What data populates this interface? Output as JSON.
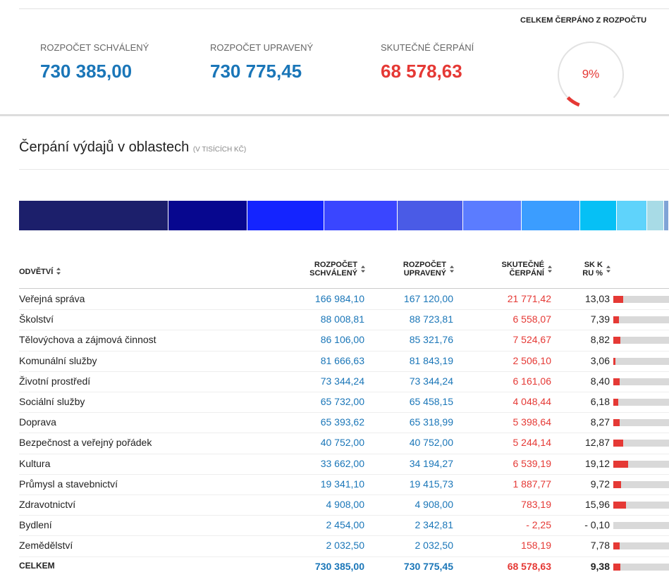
{
  "summary": {
    "items": [
      {
        "label": "ROZPOČET SCHVÁLENÝ",
        "value": "730 385,00"
      },
      {
        "label": "ROZPOČET UPRAVENÝ",
        "value": "730 775,45"
      },
      {
        "label": "SKUTEČNÉ ČERPÁNÍ",
        "value": "68 578,63"
      }
    ],
    "gauge_title": "CELKEM ČERPÁNO Z ROZPOČTU",
    "gauge": {
      "value": 9,
      "label": "9%"
    }
  },
  "section": {
    "title": "Čerpání výdajů v oblastech",
    "unit": "(V TISÍCÍCH KČ)"
  },
  "table": {
    "headers": [
      "ODVĚTVÍ",
      "ROZPOČET SCHVÁLENÝ",
      "ROZPOČET UPRAVENÝ",
      "SKUTEČNÉ ČERPÁNÍ",
      "SK K RU %"
    ],
    "rows": [
      [
        "Veřejná správa",
        "166 984,10",
        "167 120,00",
        "21 771,42",
        "13,03"
      ],
      [
        "Školství",
        "88 008,81",
        "88 723,81",
        "6 558,07",
        "7,39"
      ],
      [
        "Tělovýchova a zájmová činnost",
        "86 106,00",
        "85 321,76",
        "7 524,67",
        "8,82"
      ],
      [
        "Komunální služby",
        "81 666,63",
        "81 843,19",
        "2 506,10",
        "3,06"
      ],
      [
        "Životní prostředí",
        "73 344,24",
        "73 344,24",
        "6 161,06",
        "8,40"
      ],
      [
        "Sociální služby",
        "65 732,00",
        "65 458,15",
        "4 048,44",
        "6,18"
      ],
      [
        "Doprava",
        "65 393,62",
        "65 318,99",
        "5 398,64",
        "8,27"
      ],
      [
        "Bezpečnost a veřejný pořádek",
        "40 752,00",
        "40 752,00",
        "5 244,14",
        "12,87"
      ],
      [
        "Kultura",
        "33 662,00",
        "34 194,27",
        "6 539,19",
        "19,12"
      ],
      [
        "Průmysl a stavebnictví",
        "19 341,10",
        "19 415,73",
        "1 887,77",
        "9,72"
      ],
      [
        "Zdravotnictví",
        "4 908,00",
        "4 908,00",
        "783,19",
        "15,96"
      ],
      [
        "Bydlení",
        "2 454,00",
        "2 342,81",
        "- 2,25",
        "- 0,10"
      ],
      [
        "Zemědělství",
        "2 032,50",
        "2 032,50",
        "158,19",
        "7,78"
      ]
    ],
    "total": [
      "CELKEM",
      "730 385,00",
      "730 775,45",
      "68 578,63",
      "9,38"
    ],
    "strip_colors": [
      "#1c1f6b",
      "#07078f",
      "#1424ff",
      "#3a46ff",
      "#4a5be6",
      "#5b7cff",
      "#3b9dff",
      "#06c0f5",
      "#5fd3fb",
      "#a8dbe6",
      "#7fa3d6",
      "#4d6fd0",
      "#2c3fb0"
    ]
  }
}
